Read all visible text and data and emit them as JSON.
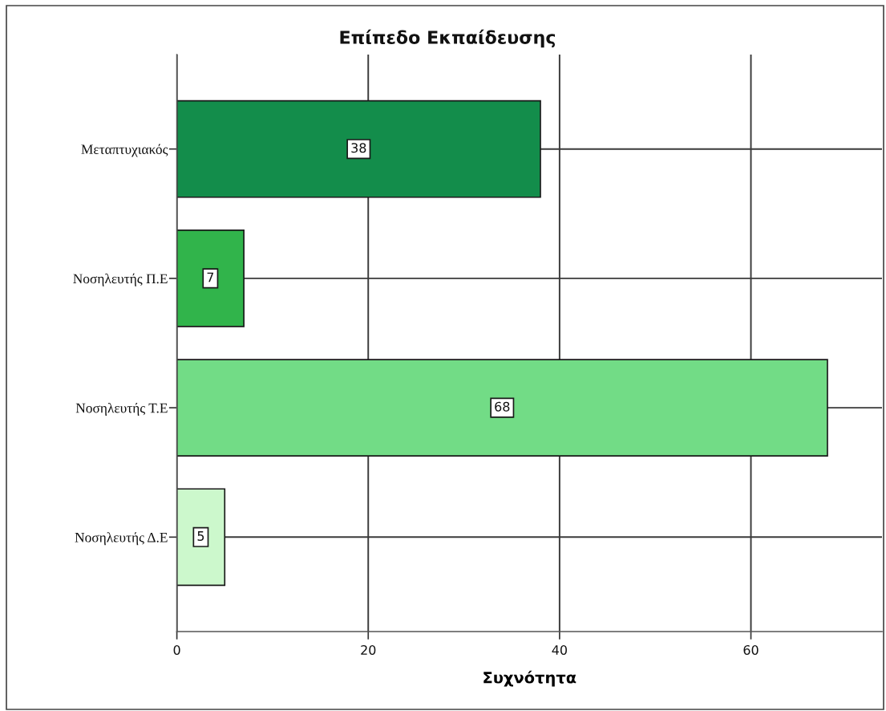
{
  "chart_data": {
    "type": "bar",
    "orientation": "horizontal",
    "title": "Επίπεδο Εκπαίδευσης",
    "xlabel": "Συχνότητα",
    "categories": [
      "Μεταπτυχιακός",
      "Νοσηλευτής Π.Ε",
      "Νοσηλευτής Τ.Ε",
      "Νοσηλευτής Δ.Ε"
    ],
    "values": [
      38,
      7,
      68,
      5
    ],
    "colors": [
      "#138d4b",
      "#31b44b",
      "#72dc86",
      "#ccf8cc"
    ],
    "xlim": [
      0,
      73.7
    ],
    "xticks": [
      0,
      20,
      40,
      60
    ],
    "grid": true,
    "data_labels": true
  }
}
